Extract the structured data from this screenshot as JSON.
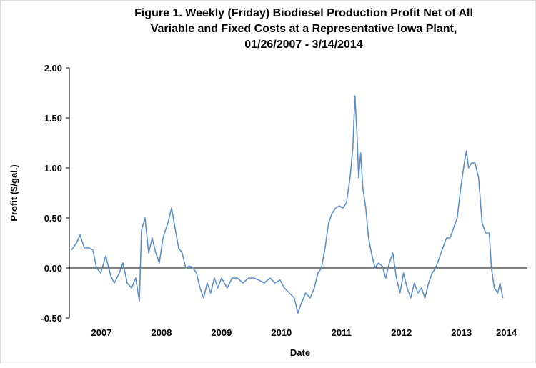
{
  "chart_data": {
    "type": "line",
    "title": [
      "Figure 1. Weekly (Friday) Biodiesel Production Profit Net of All",
      "Variable and Fixed Costs at a Representative Iowa Plant,",
      "01/26/2007  - 3/14/2014"
    ],
    "x_label": "Date",
    "y_label": "Profit ($/gal.)",
    "xlim": [
      2006.964,
      2014.6
    ],
    "ylim": [
      -0.5,
      2.0
    ],
    "xticks": [
      {
        "value": 2007.5,
        "label": "2007"
      },
      {
        "value": 2008.5,
        "label": "2008"
      },
      {
        "value": 2009.5,
        "label": "2009"
      },
      {
        "value": 2010.5,
        "label": "2010"
      },
      {
        "value": 2011.5,
        "label": "2011"
      },
      {
        "value": 2012.5,
        "label": "2012"
      },
      {
        "value": 2013.5,
        "label": "2013"
      },
      {
        "value": 2014.25,
        "label": "2014"
      }
    ],
    "yticks": [
      {
        "value": -0.5,
        "label": "-0.50"
      },
      {
        "value": 0,
        "label": "0.00"
      },
      {
        "value": 0.5,
        "label": "0.50"
      },
      {
        "value": 1.0,
        "label": "1.00"
      },
      {
        "value": 1.5,
        "label": "1.50"
      },
      {
        "value": 2.0,
        "label": "2.00"
      }
    ],
    "series": [
      {
        "color": "#5b8fd0",
        "x": [
          2007.0,
          2007.083,
          2007.143,
          2007.214,
          2007.298,
          2007.357,
          2007.417,
          2007.488,
          2007.571,
          2007.655,
          2007.714,
          2007.798,
          2007.857,
          2007.929,
          2008.0,
          2008.071,
          2008.131,
          2008.167,
          2008.226,
          2008.286,
          2008.345,
          2008.405,
          2008.464,
          2008.524,
          2008.607,
          2008.667,
          2008.726,
          2008.786,
          2008.845,
          2008.905,
          2008.964,
          2009.024,
          2009.083,
          2009.143,
          2009.202,
          2009.262,
          2009.321,
          2009.381,
          2009.44,
          2009.5,
          2009.595,
          2009.679,
          2009.762,
          2009.857,
          2009.952,
          2010.036,
          2010.119,
          2010.214,
          2010.31,
          2010.393,
          2010.476,
          2010.548,
          2010.631,
          2010.714,
          2010.774,
          2010.833,
          2010.905,
          2010.976,
          2011.048,
          2011.107,
          2011.167,
          2011.226,
          2011.286,
          2011.345,
          2011.405,
          2011.464,
          2011.524,
          2011.583,
          2011.643,
          2011.69,
          2011.726,
          2011.762,
          2011.786,
          2011.821,
          2011.857,
          2011.905,
          2011.952,
          2012.0,
          2012.06,
          2012.119,
          2012.179,
          2012.238,
          2012.298,
          2012.357,
          2012.417,
          2012.476,
          2012.536,
          2012.595,
          2012.655,
          2012.714,
          2012.774,
          2012.833,
          2012.893,
          2012.952,
          2013.012,
          2013.071,
          2013.131,
          2013.19,
          2013.25,
          2013.31,
          2013.369,
          2013.429,
          2013.488,
          2013.548,
          2013.583,
          2013.619,
          2013.667,
          2013.726,
          2013.786,
          2013.845,
          2013.905,
          2013.964,
          2014.0,
          2014.048,
          2014.107,
          2014.143,
          2014.19
        ],
        "values": [
          0.18,
          0.25,
          0.33,
          0.2,
          0.2,
          0.18,
          0.0,
          -0.05,
          0.12,
          -0.08,
          -0.15,
          -0.05,
          0.05,
          -0.15,
          -0.2,
          -0.1,
          -0.33,
          0.38,
          0.5,
          0.15,
          0.3,
          0.15,
          0.05,
          0.3,
          0.45,
          0.6,
          0.4,
          0.2,
          0.15,
          0.0,
          0.02,
          0.0,
          -0.05,
          -0.2,
          -0.3,
          -0.15,
          -0.25,
          -0.1,
          -0.2,
          -0.1,
          -0.2,
          -0.1,
          -0.1,
          -0.15,
          -0.1,
          -0.1,
          -0.12,
          -0.15,
          -0.1,
          -0.15,
          -0.12,
          -0.2,
          -0.25,
          -0.3,
          -0.45,
          -0.35,
          -0.25,
          -0.3,
          -0.2,
          -0.05,
          0.0,
          0.2,
          0.45,
          0.55,
          0.6,
          0.62,
          0.6,
          0.65,
          0.9,
          1.2,
          1.72,
          1.3,
          0.9,
          1.15,
          0.8,
          0.6,
          0.3,
          0.15,
          0.0,
          0.05,
          0.02,
          -0.1,
          0.05,
          0.15,
          -0.1,
          -0.25,
          -0.05,
          -0.2,
          -0.3,
          -0.15,
          -0.25,
          -0.2,
          -0.3,
          -0.15,
          -0.05,
          0.0,
          0.1,
          0.2,
          0.3,
          0.3,
          0.4,
          0.5,
          0.8,
          1.05,
          1.17,
          1.0,
          1.05,
          1.05,
          0.9,
          0.45,
          0.35,
          0.35,
          0.0,
          -0.2,
          -0.25,
          -0.15,
          -0.3
        ]
      }
    ]
  }
}
